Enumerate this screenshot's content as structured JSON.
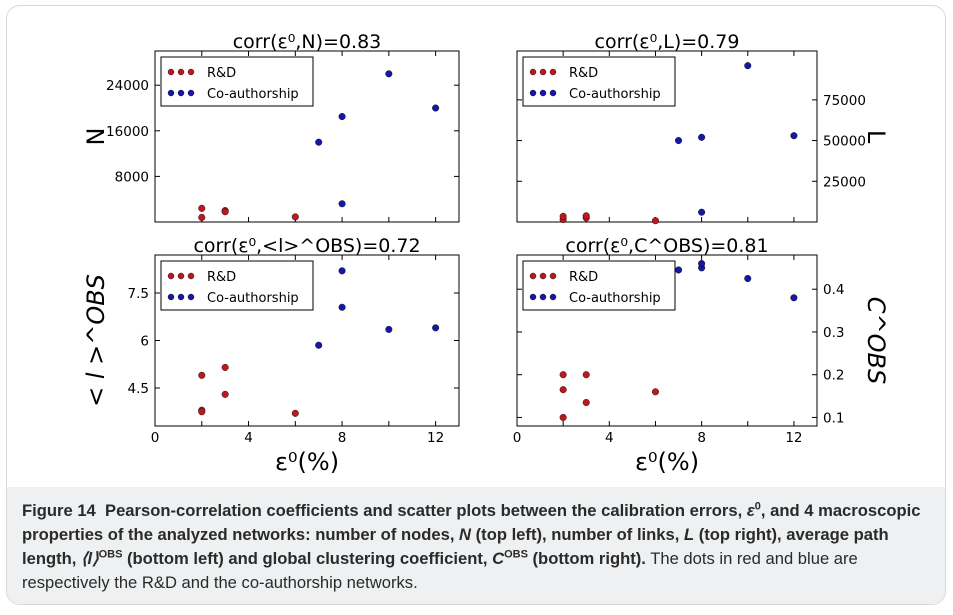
{
  "figure": {
    "caption_label": "Figure 14",
    "caption_bold_1": "Pearson-correlation coefficients and scatter plots between the calibration errors, ",
    "caption_eps": "ε",
    "caption_eps_sup": "0",
    "caption_bold_2": ", and 4 macroscopic properties of the analyzed networks: number of nodes, ",
    "caption_N": "N",
    "caption_bold_3": " (top left), number of links, ",
    "caption_L": "L",
    "caption_bold_4": " (top right), average path length, ",
    "caption_l": "⟨l⟩",
    "caption_obs_1": "OBS",
    "caption_bold_5": " (bottom left) and global clustering coefficient, ",
    "caption_C": "C",
    "caption_obs_2": "OBS",
    "caption_bold_6": " (bottom right).",
    "caption_rest": " The dots in red and blue are respectively the R&D and the co-authorship networks."
  },
  "colors": {
    "rd": "#c0171e",
    "co": "#1616a8"
  },
  "chart_data": [
    {
      "type": "scatter",
      "title": "corr(ε⁰,N)=0.83",
      "ylabel": "N",
      "xlim": [
        0,
        13
      ],
      "ylim": [
        0,
        30000
      ],
      "yticks": [
        8000,
        16000,
        24000
      ],
      "xticks": [],
      "legend": "top-left",
      "series": [
        {
          "name": "R&D",
          "color": "rd",
          "x": [
            2,
            2,
            3,
            3,
            6
          ],
          "y": [
            2400,
            800,
            2000,
            1800,
            900
          ]
        },
        {
          "name": "Co-authorship",
          "color": "co",
          "x": [
            7,
            8,
            8,
            10,
            12
          ],
          "y": [
            14000,
            3200,
            18500,
            26000,
            20000
          ]
        }
      ]
    },
    {
      "type": "scatter",
      "title": "corr(ε⁰,L)=0.79",
      "ylabel": "L",
      "yaxis_side": "right",
      "xlim": [
        0,
        13
      ],
      "ylim": [
        0,
        105000
      ],
      "yticks": [
        25000,
        50000,
        75000
      ],
      "xticks": [],
      "legend": "top-left",
      "series": [
        {
          "name": "R&D",
          "color": "rd",
          "x": [
            2,
            2,
            3,
            3,
            6
          ],
          "y": [
            1500,
            3500,
            2500,
            3800,
            800
          ]
        },
        {
          "name": "Co-authorship",
          "color": "co",
          "x": [
            7,
            8,
            8,
            10,
            12
          ],
          "y": [
            50000,
            52000,
            6000,
            96000,
            53000
          ]
        }
      ]
    },
    {
      "type": "scatter",
      "title": "corr(ε⁰,<l>^OBS)=0.72",
      "ylabel": "< l >^OBS",
      "xlabel": "ε⁰(%)",
      "xlim": [
        0,
        13
      ],
      "ylim": [
        3.3,
        8.7
      ],
      "yticks": [
        4.5,
        6.0,
        7.5
      ],
      "xticks": [
        0,
        4,
        8,
        12
      ],
      "legend": "top-left",
      "series": [
        {
          "name": "R&D",
          "color": "rd",
          "x": [
            2,
            2,
            2,
            3,
            3,
            6
          ],
          "y": [
            4.9,
            3.8,
            3.75,
            5.15,
            4.3,
            3.7
          ]
        },
        {
          "name": "Co-authorship",
          "color": "co",
          "x": [
            7,
            8,
            8,
            10,
            12
          ],
          "y": [
            5.85,
            8.2,
            7.05,
            6.35,
            6.4
          ]
        }
      ]
    },
    {
      "type": "scatter",
      "title": "corr(ε⁰,C^OBS)=0.81",
      "ylabel": "C^OBS",
      "xlabel": "ε⁰(%)",
      "yaxis_side": "right",
      "xlim": [
        0,
        13
      ],
      "ylim": [
        0.08,
        0.48
      ],
      "yticks": [
        0.1,
        0.2,
        0.3,
        0.4
      ],
      "xticks": [
        0,
        4,
        8,
        12
      ],
      "legend": "top-left",
      "series": [
        {
          "name": "R&D",
          "color": "rd",
          "x": [
            2,
            2,
            2,
            3,
            3,
            6
          ],
          "y": [
            0.2,
            0.165,
            0.1,
            0.2,
            0.135,
            0.16
          ]
        },
        {
          "name": "Co-authorship",
          "color": "co",
          "x": [
            7,
            8,
            8,
            10,
            12
          ],
          "y": [
            0.445,
            0.45,
            0.46,
            0.425,
            0.38
          ]
        }
      ]
    }
  ]
}
